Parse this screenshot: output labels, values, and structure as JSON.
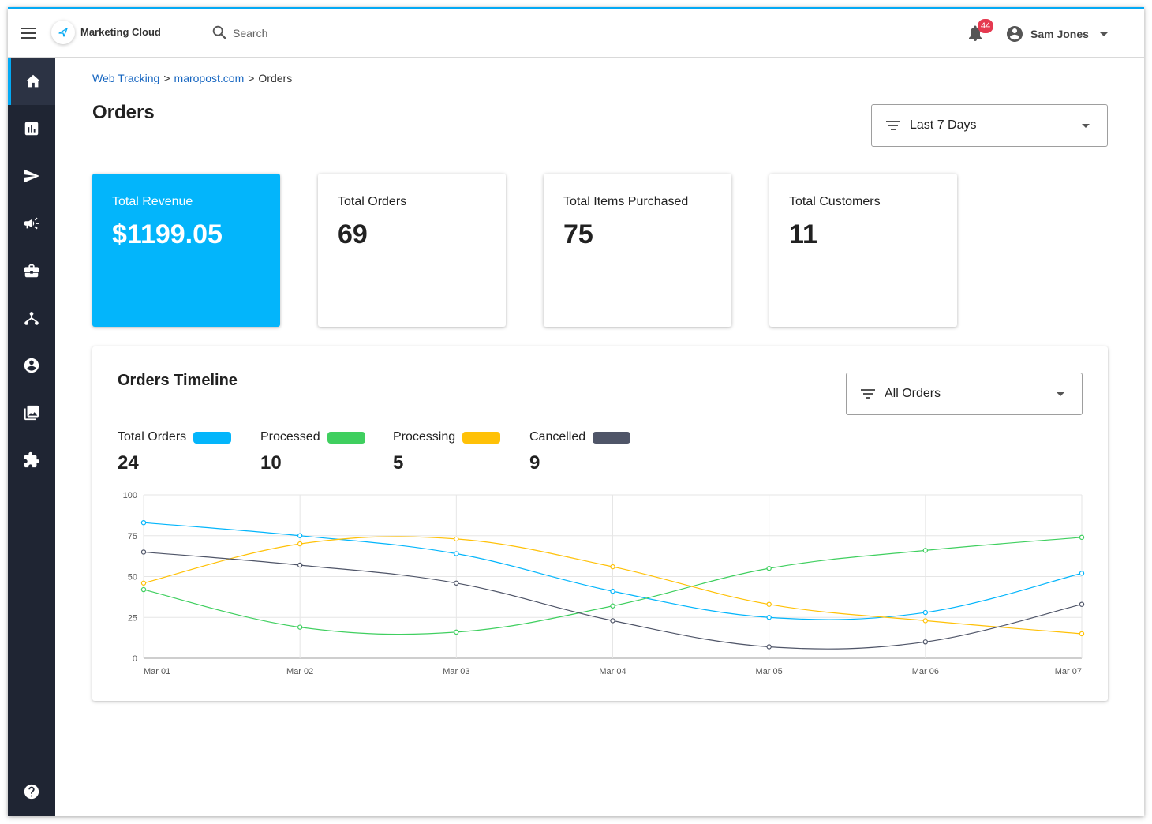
{
  "app": {
    "title": "Marketing Cloud"
  },
  "search": {
    "placeholder": "Search"
  },
  "notifications": {
    "count": "44"
  },
  "user": {
    "name": "Sam Jones"
  },
  "sidebar": {
    "items": [
      {
        "icon": "home-icon",
        "active": true
      },
      {
        "icon": "bar-chart-icon",
        "active": false
      },
      {
        "icon": "send-icon",
        "active": false
      },
      {
        "icon": "megaphone-icon",
        "active": false
      },
      {
        "icon": "briefcase-icon",
        "active": false
      },
      {
        "icon": "hierarchy-icon",
        "active": false
      },
      {
        "icon": "account-circle-icon",
        "active": false
      },
      {
        "icon": "image-gallery-icon",
        "active": false
      },
      {
        "icon": "puzzle-icon",
        "active": false
      }
    ],
    "help_icon": "help-icon"
  },
  "breadcrumb": {
    "item1": "Web Tracking",
    "item2": "maropost.com",
    "current": "Orders",
    "separator": ">"
  },
  "page": {
    "title": "Orders"
  },
  "date_filter": {
    "value": "Last 7 Days"
  },
  "stats": [
    {
      "label": "Total Revenue",
      "value": "$1199.05"
    },
    {
      "label": "Total Orders",
      "value": "69"
    },
    {
      "label": "Total Items Purchased",
      "value": "75"
    },
    {
      "label": "Total Customers",
      "value": "11"
    }
  ],
  "timeline": {
    "title": "Orders Timeline",
    "filter_value": "All Orders",
    "legend": [
      {
        "name": "Total Orders",
        "value": "24",
        "color": "#03b5fb"
      },
      {
        "name": "Processed",
        "value": "10",
        "color": "#3fcf5f"
      },
      {
        "name": "Processing",
        "value": "5",
        "color": "#ffc107"
      },
      {
        "name": "Cancelled",
        "value": "9",
        "color": "#4f5568"
      }
    ]
  },
  "colors": {
    "accent": "#03a9f4",
    "sidebar": "#1f2533",
    "badge": "#e53950"
  },
  "chart_data": {
    "type": "line",
    "x": [
      "Mar 01",
      "Mar 02",
      "Mar 03",
      "Mar 04",
      "Mar 05",
      "Mar 06",
      "Mar 07"
    ],
    "ylim": [
      0,
      100
    ],
    "yticks": [
      0,
      25,
      50,
      75,
      100
    ],
    "grid": true,
    "series": [
      {
        "name": "Total Orders",
        "color": "#03b5fb",
        "values": [
          83,
          75,
          64,
          41,
          25,
          28,
          52
        ]
      },
      {
        "name": "Processed",
        "color": "#3fcf5f",
        "values": [
          42,
          19,
          16,
          32,
          55,
          66,
          74
        ]
      },
      {
        "name": "Processing",
        "color": "#ffc107",
        "values": [
          46,
          70,
          73,
          56,
          33,
          23,
          15
        ]
      },
      {
        "name": "Cancelled",
        "color": "#4f5568",
        "values": [
          65,
          57,
          46,
          23,
          7,
          10,
          33
        ]
      }
    ]
  }
}
